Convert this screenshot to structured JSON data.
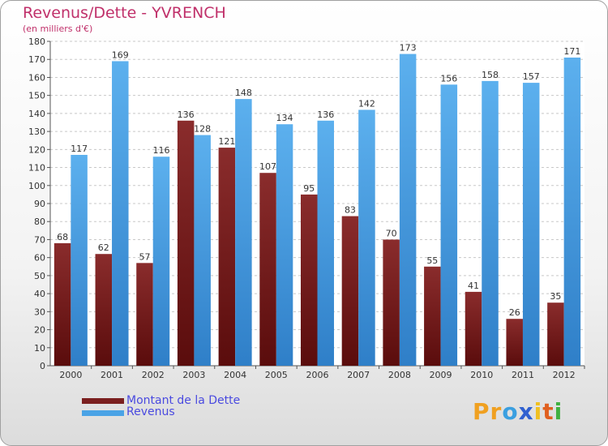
{
  "title": "Revenus/Dette - YVRENCH",
  "subtitle": "(en milliers d'€)",
  "colors": {
    "debt": "#7a1f1f",
    "revenue": "#4aa3e6",
    "title": "#c0306a",
    "legend_text": "#4a4ae0"
  },
  "legend": {
    "debt_label": "Montant de la Dette",
    "revenue_label": "Revenus"
  },
  "logo": {
    "letters": [
      "P",
      "r",
      "o",
      "x",
      "i",
      "t",
      "i"
    ],
    "colors": [
      "#f0a020",
      "#f0a020",
      "#3a9fe0",
      "#3060d0",
      "#f0c020",
      "#e06020",
      "#40b040"
    ]
  },
  "chart_data": {
    "type": "bar",
    "title": "Revenus/Dette - YVRENCH",
    "ylabel": "(en milliers d'€)",
    "xlabel": "",
    "categories": [
      "2000",
      "2001",
      "2002",
      "2003",
      "2004",
      "2005",
      "2006",
      "2007",
      "2008",
      "2009",
      "2010",
      "2011",
      "2012"
    ],
    "series": [
      {
        "name": "Montant de la Dette",
        "values": [
          68,
          62,
          57,
          136,
          121,
          107,
          95,
          83,
          70,
          55,
          41,
          26,
          35
        ]
      },
      {
        "name": "Revenus",
        "values": [
          117,
          169,
          116,
          128,
          148,
          134,
          136,
          142,
          173,
          156,
          158,
          157,
          171
        ]
      }
    ],
    "ylim": [
      0,
      180
    ],
    "ytick_step": 10,
    "grid": true,
    "legend_position": "bottom-left"
  }
}
